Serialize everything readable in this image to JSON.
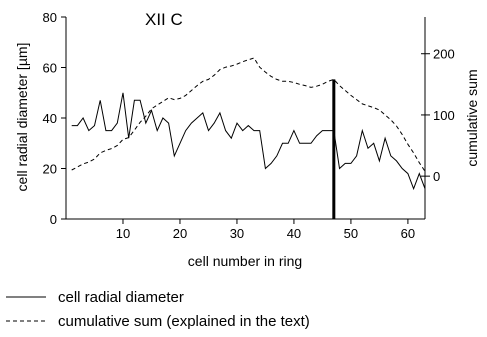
{
  "chart_data": {
    "type": "line",
    "title": "XII C",
    "xlabel": "cell number in ring",
    "ylabel_left": "cell radial diameter [µm]",
    "ylabel_right": "cumulative sum",
    "xlim": [
      0,
      63
    ],
    "ylim_left": [
      0,
      80
    ],
    "ylim_right": [
      -70,
      260
    ],
    "x_ticks": [
      10,
      20,
      30,
      40,
      50,
      60
    ],
    "y_ticks_left": [
      0,
      20,
      40,
      60,
      80
    ],
    "y_ticks_right": [
      0,
      100,
      200
    ],
    "grid": false,
    "legend_position": "bottom",
    "marker_line_x": 47,
    "series": [
      {
        "name": "cell radial diameter",
        "axis": "left",
        "style": "solid",
        "x": [
          1,
          2,
          3,
          4,
          5,
          6,
          7,
          8,
          9,
          10,
          11,
          12,
          13,
          14,
          15,
          16,
          17,
          18,
          19,
          20,
          21,
          22,
          23,
          24,
          25,
          26,
          27,
          28,
          29,
          30,
          31,
          32,
          33,
          34,
          35,
          36,
          37,
          38,
          39,
          40,
          41,
          42,
          43,
          44,
          45,
          46,
          47,
          48,
          49,
          50,
          51,
          52,
          53,
          54,
          55,
          56,
          57,
          58,
          59,
          60,
          61,
          62,
          63
        ],
        "values": [
          37,
          37,
          40,
          35,
          37,
          47,
          35,
          35,
          38,
          50,
          32,
          47,
          47,
          38,
          43,
          35,
          40,
          38,
          25,
          30,
          35,
          38,
          40,
          42,
          35,
          38,
          42,
          35,
          32,
          38,
          35,
          37,
          35,
          35,
          20,
          22,
          25,
          30,
          30,
          35,
          30,
          30,
          30,
          33,
          35,
          35,
          35,
          20,
          22,
          22,
          25,
          35,
          28,
          30,
          23,
          32,
          25,
          23,
          20,
          18,
          12,
          18,
          12
        ]
      },
      {
        "name": "cumulative sum (explained in the text)",
        "axis": "right",
        "style": "dashed",
        "x": [
          1,
          2,
          3,
          4,
          5,
          6,
          7,
          8,
          9,
          10,
          11,
          12,
          13,
          14,
          15,
          16,
          17,
          18,
          19,
          20,
          21,
          22,
          23,
          24,
          25,
          26,
          27,
          28,
          29,
          30,
          31,
          32,
          33,
          34,
          35,
          36,
          37,
          38,
          39,
          40,
          41,
          42,
          43,
          44,
          45,
          46,
          47,
          48,
          49,
          50,
          51,
          52,
          53,
          54,
          55,
          56,
          57,
          58,
          59,
          60,
          61,
          62,
          63
        ],
        "values": [
          10,
          15,
          20,
          23,
          28,
          38,
          42,
          45,
          50,
          60,
          63,
          75,
          88,
          98,
          110,
          116,
          122,
          128,
          125,
          127,
          132,
          140,
          148,
          155,
          158,
          165,
          174,
          178,
          180,
          183,
          187,
          190,
          193,
          178,
          170,
          163,
          158,
          155,
          155,
          153,
          150,
          148,
          145,
          147,
          150,
          155,
          158,
          148,
          140,
          132,
          125,
          118,
          115,
          112,
          108,
          100,
          92,
          82,
          68,
          52,
          38,
          22,
          8
        ]
      }
    ]
  }
}
